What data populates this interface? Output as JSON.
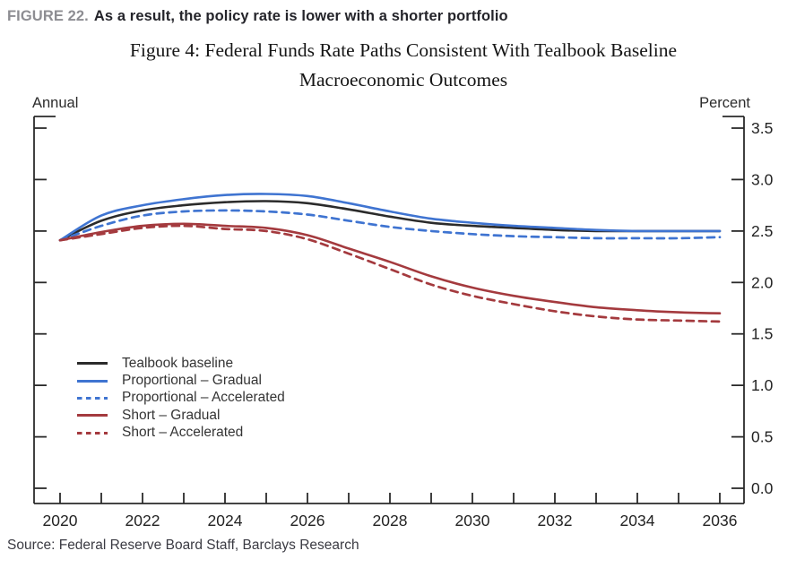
{
  "header": {
    "figure_label": "FIGURE 22.",
    "headline": "As a result, the policy rate is lower with a shorter portfolio"
  },
  "chart": {
    "title_line1": "Figure 4: Federal Funds Rate Paths Consistent With Tealbook Baseline",
    "title_line2": "Macroeconomic Outcomes",
    "left_axis_label": "Annual",
    "right_axis_label": "Percent"
  },
  "source": {
    "text": "Source: Federal Reserve Board Staff, Barclays Research"
  },
  "colors": {
    "axis": "#2a2a2a",
    "black_series": "#2b2b2b",
    "blue_series": "#3f74d1",
    "red_series": "#a43a3e"
  },
  "chart_data": {
    "type": "line",
    "title": "Figure 4: Federal Funds Rate Paths Consistent With Tealbook Baseline Macroeconomic Outcomes",
    "xlabel_unit": "Annual",
    "ylabel_unit": "Percent",
    "grid": false,
    "legend_position": "inside lower-left",
    "x": [
      2020,
      2021,
      2022,
      2023,
      2024,
      2025,
      2026,
      2027,
      2028,
      2029,
      2030,
      2031,
      2032,
      2033,
      2034,
      2035,
      2036
    ],
    "x_tick_labels": [
      "2020",
      "2022",
      "2024",
      "2026",
      "2028",
      "2030",
      "2032",
      "2034",
      "2036"
    ],
    "ylim": [
      0.0,
      3.5
    ],
    "y_tick_labels": [
      "0.0",
      "0.5",
      "1.0",
      "1.5",
      "2.0",
      "2.5",
      "3.0",
      "3.5"
    ],
    "series": [
      {
        "name": "Tealbook baseline",
        "color": "#2b2b2b",
        "style": "solid",
        "values": [
          2.41,
          2.6,
          2.7,
          2.75,
          2.78,
          2.79,
          2.77,
          2.71,
          2.64,
          2.58,
          2.55,
          2.53,
          2.51,
          2.5,
          2.5,
          2.5,
          2.5
        ]
      },
      {
        "name": "Proportional – Gradual",
        "color": "#3f74d1",
        "style": "solid",
        "values": [
          2.41,
          2.65,
          2.75,
          2.81,
          2.85,
          2.86,
          2.84,
          2.77,
          2.69,
          2.62,
          2.58,
          2.55,
          2.53,
          2.51,
          2.5,
          2.5,
          2.5
        ]
      },
      {
        "name": "Proportional – Accelerated",
        "color": "#3f74d1",
        "style": "dashed",
        "values": [
          2.41,
          2.55,
          2.65,
          2.69,
          2.7,
          2.69,
          2.66,
          2.6,
          2.54,
          2.5,
          2.47,
          2.45,
          2.44,
          2.43,
          2.43,
          2.43,
          2.44
        ]
      },
      {
        "name": "Short – Gradual",
        "color": "#a43a3e",
        "style": "solid",
        "values": [
          2.41,
          2.49,
          2.55,
          2.57,
          2.55,
          2.53,
          2.46,
          2.33,
          2.2,
          2.06,
          1.95,
          1.87,
          1.81,
          1.76,
          1.73,
          1.71,
          1.7
        ]
      },
      {
        "name": "Short – Accelerated",
        "color": "#a43a3e",
        "style": "dashed",
        "values": [
          2.41,
          2.47,
          2.53,
          2.55,
          2.52,
          2.5,
          2.42,
          2.28,
          2.13,
          1.98,
          1.87,
          1.79,
          1.72,
          1.67,
          1.64,
          1.63,
          1.62
        ]
      }
    ]
  }
}
